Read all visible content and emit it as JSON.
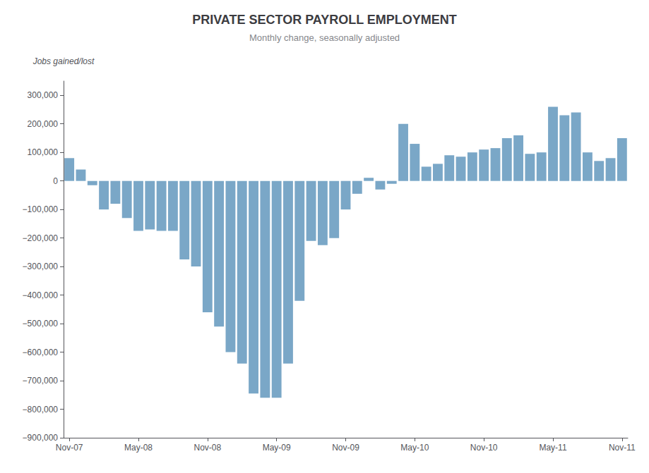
{
  "chart_data": {
    "type": "bar",
    "title": "PRIVATE SECTOR PAYROLL EMPLOYMENT",
    "subtitle": "Monthly change, seasonally adjusted",
    "ylabel": "Jobs gained/lost",
    "categories": [
      "Nov-07",
      null,
      null,
      null,
      null,
      null,
      "May-08",
      null,
      null,
      null,
      null,
      null,
      "Nov-08",
      null,
      null,
      null,
      null,
      null,
      "May-09",
      null,
      null,
      null,
      null,
      null,
      "Nov-09",
      null,
      null,
      null,
      null,
      null,
      "May-10",
      null,
      null,
      null,
      null,
      null,
      "Nov-10",
      null,
      null,
      null,
      null,
      null,
      "May-11",
      null,
      null,
      null,
      null,
      null,
      "Nov-11"
    ],
    "values": [
      80000,
      40000,
      -15000,
      -100000,
      -80000,
      -130000,
      -175000,
      -170000,
      -175000,
      -175000,
      -275000,
      -300000,
      -460000,
      -510000,
      -600000,
      -640000,
      -745000,
      -760000,
      -760000,
      -640000,
      -420000,
      -210000,
      -225000,
      -200000,
      -100000,
      -45000,
      11000,
      -30000,
      -10000,
      200000,
      130000,
      50000,
      60000,
      90000,
      85000,
      100000,
      110000,
      115000,
      150000,
      160000,
      95000,
      100000,
      260000,
      230000,
      240000,
      100000,
      70000,
      80000,
      150000
    ],
    "color": "#7aa7c7",
    "ylim": [
      -900000,
      350000
    ],
    "yticks": [
      {
        "value": 300000,
        "label": "300,000"
      },
      {
        "value": 200000,
        "label": "200,000"
      },
      {
        "value": 100000,
        "label": "100,000"
      },
      0,
      {
        "value": -100000,
        "label": "−100,000"
      },
      {
        "value": -200000,
        "label": "−200,000"
      },
      {
        "value": -300000,
        "label": "−300,000"
      },
      {
        "value": -400000,
        "label": "−400,000"
      },
      {
        "value": -500000,
        "label": "−500,000"
      },
      {
        "value": -600000,
        "label": "−600,000"
      },
      {
        "value": -700000,
        "label": "−700,000"
      },
      {
        "value": -800000,
        "label": "−800,000"
      },
      {
        "value": -900000,
        "label": "−900,000"
      }
    ],
    "grid": false
  }
}
